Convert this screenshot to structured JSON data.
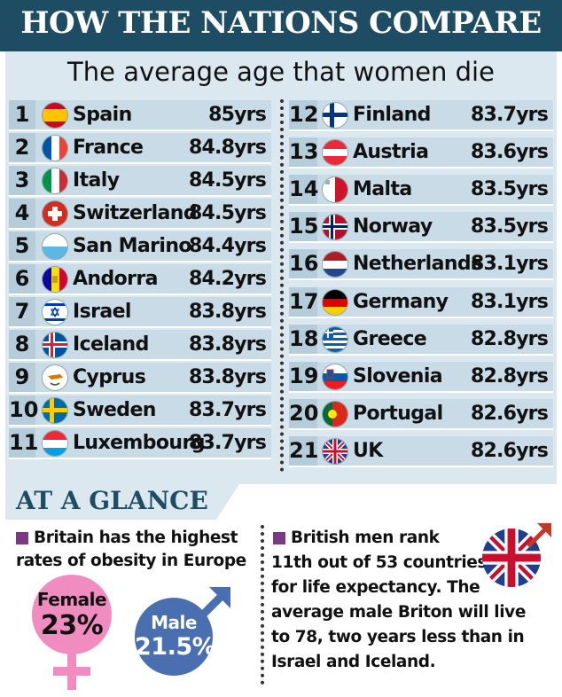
{
  "header": {
    "title": "HOW THE NATIONS COMPARE"
  },
  "subtitle": "The average age that women die",
  "rankings_left": [
    {
      "rank": "1",
      "country": "Spain",
      "value": "85yrs"
    },
    {
      "rank": "2",
      "country": "France",
      "value": "84.8yrs"
    },
    {
      "rank": "3",
      "country": "Italy",
      "value": "84.5yrs"
    },
    {
      "rank": "4",
      "country": "Switzerland",
      "value": "84.5yrs"
    },
    {
      "rank": "5",
      "country": "San Marino",
      "value": "84.4yrs"
    },
    {
      "rank": "6",
      "country": "Andorra",
      "value": "84.2yrs"
    },
    {
      "rank": "7",
      "country": "Israel",
      "value": "83.8yrs"
    },
    {
      "rank": "8",
      "country": "Iceland",
      "value": "83.8yrs"
    },
    {
      "rank": "9",
      "country": "Cyprus",
      "value": "83.8yrs"
    },
    {
      "rank": "10",
      "country": "Sweden",
      "value": "83.7yrs"
    },
    {
      "rank": "11",
      "country": "Luxembourg",
      "value": "83.7yrs"
    }
  ],
  "rankings_right": [
    {
      "rank": "12",
      "country": "Finland",
      "value": "83.7yrs"
    },
    {
      "rank": "13",
      "country": "Austria",
      "value": "83.6yrs"
    },
    {
      "rank": "14",
      "country": "Malta",
      "value": "83.5yrs"
    },
    {
      "rank": "15",
      "country": "Norway",
      "value": "83.5yrs"
    },
    {
      "rank": "16",
      "country": "Netherlands",
      "value": "83.1yrs"
    },
    {
      "rank": "17",
      "country": "Germany",
      "value": "83.1yrs"
    },
    {
      "rank": "18",
      "country": "Greece",
      "value": "82.8yrs"
    },
    {
      "rank": "19",
      "country": "Slovenia",
      "value": "82.8yrs"
    },
    {
      "rank": "20",
      "country": "Portugal",
      "value": "82.6yrs"
    },
    {
      "rank": "21",
      "country": "UK",
      "value": "82.6yrs"
    }
  ],
  "glance": {
    "title": "AT A GLANCE",
    "obesity_line1": "Britain has the highest",
    "obesity_line2": "rates of obesity in Europe",
    "female_label": "Female",
    "female_value": "23%",
    "male_label": "Male",
    "male_value": "21.5%",
    "men_line1": "British men rank",
    "men_line2": "11th out of 53 countries",
    "men_line3": "for life expectancy. The",
    "men_line4": "average male Briton will live",
    "men_line5": "to 78, two years less than in",
    "men_line6": "Israel and Iceland."
  },
  "colors": {
    "banner": "#1e4d63",
    "panel": "#dbe8f0",
    "female": "#f08cc0",
    "male": "#4a6fb0",
    "bullet": "#7a3a82"
  }
}
